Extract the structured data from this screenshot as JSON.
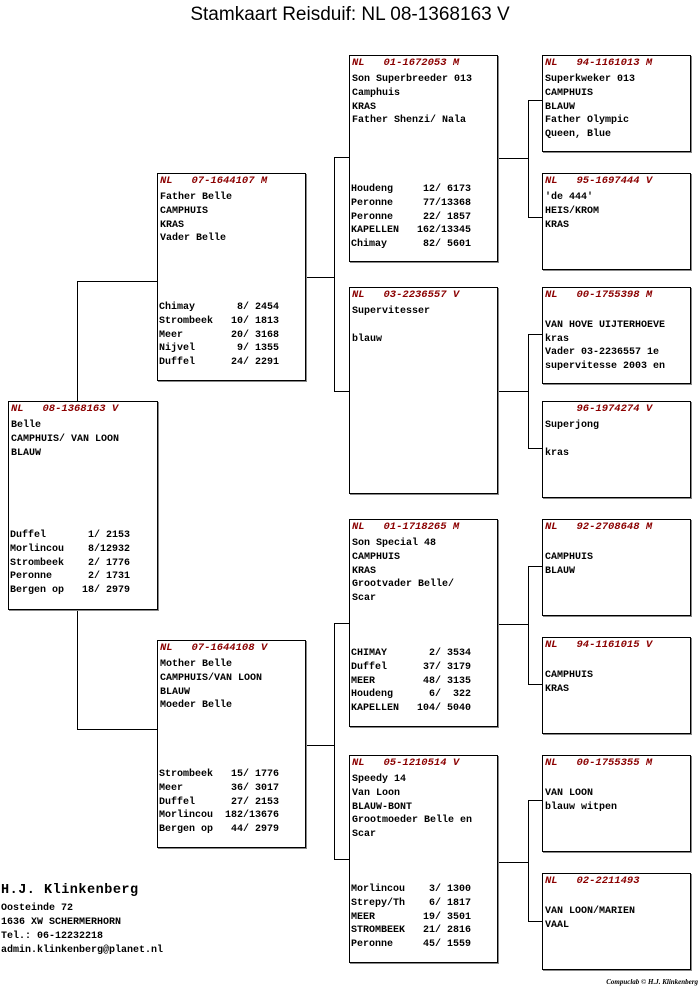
{
  "title": "Stamkaart Reisduif: NL  08-1368163 V",
  "pigeons": {
    "subject": {
      "country": "NL",
      "ring": "08-1368163",
      "sex": "V",
      "lines": [
        "Belle",
        "CAMPHUIS/ VAN LOON",
        "BLAUW"
      ],
      "results": [
        [
          "Duffel",
          "1/ 2153"
        ],
        [
          "Morlincou",
          "8/12932"
        ],
        [
          "Strombeek",
          "2/ 1776"
        ],
        [
          "Peronne",
          "2/ 1731"
        ],
        [
          "Bergen op",
          "18/ 2979"
        ]
      ]
    },
    "father": {
      "country": "NL",
      "ring": "07-1644107",
      "sex": "M",
      "lines": [
        "Father Belle",
        "CAMPHUIS",
        "KRAS",
        "Vader Belle"
      ],
      "results": [
        [
          "Chimay",
          "8/ 2454"
        ],
        [
          "Strombeek",
          "10/ 1813"
        ],
        [
          "Meer",
          "20/ 3168"
        ],
        [
          "Nijvel",
          "9/ 1355"
        ],
        [
          "Duffel",
          "24/ 2291"
        ]
      ]
    },
    "mother": {
      "country": "NL",
      "ring": "07-1644108",
      "sex": "V",
      "lines": [
        "Mother Belle",
        "CAMPHUIS/VAN LOON",
        "BLAUW",
        "Moeder Belle"
      ],
      "results": [
        [
          "Strombeek",
          "15/ 1776"
        ],
        [
          "Meer",
          "36/ 3017"
        ],
        [
          "Duffel",
          "27/ 2153"
        ],
        [
          "Morlincou",
          "182/13676"
        ],
        [
          "Bergen op",
          "44/ 2979"
        ]
      ]
    },
    "ff": {
      "country": "NL",
      "ring": "01-1672053",
      "sex": "M",
      "lines": [
        "Son Superbreeder 013",
        "Camphuis",
        "KRAS",
        "Father Shenzi/ Nala"
      ],
      "results": [
        [
          "Houdeng",
          "12/ 6173"
        ],
        [
          "Peronne",
          "77/13368"
        ],
        [
          "Peronne",
          "22/ 1857"
        ],
        [
          "KAPELLEN",
          "162/13345"
        ],
        [
          "Chimay",
          "82/ 5601"
        ]
      ]
    },
    "fm": {
      "country": "NL",
      "ring": "03-2236557",
      "sex": "V",
      "lines": [
        "Supervitesser",
        "",
        "blauw"
      ],
      "results": []
    },
    "mf": {
      "country": "NL",
      "ring": "01-1718265",
      "sex": "M",
      "lines": [
        "Son Special 48",
        "CAMPHUIS",
        "KRAS",
        "Grootvader Belle/",
        "Scar"
      ],
      "results": [
        [
          "CHIMAY",
          "2/ 3534"
        ],
        [
          "Duffel",
          "37/ 3179"
        ],
        [
          "MEER",
          "48/ 3135"
        ],
        [
          "Houdeng",
          "6/  322"
        ],
        [
          "KAPELLEN",
          "104/ 5040"
        ]
      ]
    },
    "mm": {
      "country": "NL",
      "ring": "05-1210514",
      "sex": "V",
      "lines": [
        "Speedy 14",
        "Van Loon",
        "BLAUW-BONT",
        "Grootmoeder Belle en",
        "Scar"
      ],
      "results": [
        [
          "Morlincou",
          "3/ 1300"
        ],
        [
          "Strepy/Th",
          "6/ 1817"
        ],
        [
          "MEER",
          "19/ 3501"
        ],
        [
          "STROMBEEK",
          "21/ 2816"
        ],
        [
          "Peronne",
          "45/ 1559"
        ]
      ]
    },
    "fff": {
      "country": "NL",
      "ring": "94-1161013",
      "sex": "M",
      "lines": [
        "Superkweker 013",
        "CAMPHUIS",
        "BLAUW",
        "Father Olympic",
        "Queen, Blue"
      ],
      "results": []
    },
    "ffm": {
      "country": "NL",
      "ring": "95-1697444",
      "sex": "V",
      "lines": [
        "'de 444'",
        "HEIS/KROM",
        "KRAS"
      ],
      "results": []
    },
    "fmf": {
      "country": "NL",
      "ring": "00-1755398",
      "sex": "M",
      "lines": [
        "",
        "VAN HOVE UIJTERHOEVE",
        "kras",
        "Vader 03-2236557 1e",
        "supervitesse 2003 en"
      ],
      "results": []
    },
    "fmm": {
      "country": "",
      "ring": "96-1974274",
      "sex": "V",
      "lines": [
        "Superjong",
        "",
        "kras"
      ],
      "results": []
    },
    "mff": {
      "country": "NL",
      "ring": "92-2708648",
      "sex": "M",
      "lines": [
        "",
        "CAMPHUIS",
        "BLAUW"
      ],
      "results": []
    },
    "mfm": {
      "country": "NL",
      "ring": "94-1161015",
      "sex": "V",
      "lines": [
        "",
        "CAMPHUIS",
        "KRAS"
      ],
      "results": []
    },
    "mmf": {
      "country": "NL",
      "ring": "00-1755355",
      "sex": "M",
      "lines": [
        "",
        "VAN LOON",
        "blauw witpen"
      ],
      "results": []
    },
    "mmm": {
      "country": "NL",
      "ring": "02-2211493",
      "sex": "",
      "lines": [
        "",
        "VAN LOON/MARIEN",
        "VAAL"
      ],
      "results": []
    }
  },
  "owner": {
    "name": "H.J. Klinkenberg",
    "address": "Oosteinde 72",
    "city": "1636 XW  SCHERMERHORN",
    "phone": "Tel.: 06-12232218",
    "email": "admin.klinkenberg@planet.nl"
  },
  "credit": "Compuclab © H.J. Klinkenberg",
  "colors": {
    "ring_header": "#8b0000",
    "border": "#000000"
  }
}
